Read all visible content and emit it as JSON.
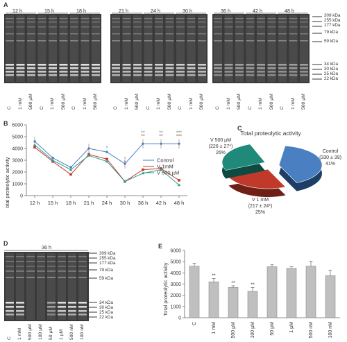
{
  "panelA": {
    "letter": "A",
    "timepoints": [
      "12 h",
      "15 h",
      "18 h",
      "21 h",
      "24 h",
      "30 h",
      "36 h",
      "42 h",
      "48 h"
    ],
    "lane_labels": [
      "C",
      "1 mM",
      "500 µM"
    ],
    "markers": [
      "309 kDa",
      "255 kDa",
      "177 kDa",
      "79 kDa",
      "59 kDa",
      "34 kDa",
      "30 kDa",
      "25 kDa",
      "22 kDa"
    ]
  },
  "panelB": {
    "letter": "B",
    "ylabel": "Total proteolytic activity",
    "legend": [
      "Control",
      "V 1mM",
      "V 500 µM"
    ],
    "colors": {
      "control": "#4a7fc1",
      "v1mm": "#c0392b",
      "v500": "#2a9d8f"
    },
    "annotations": {
      "s24": "*",
      "s30": "*",
      "ss": "**",
      "sss": "***"
    },
    "chart_data": {
      "type": "line",
      "categories": [
        "12 h",
        "15 h",
        "18 h",
        "21 h",
        "24 h",
        "30 h",
        "36 h",
        "42 h",
        "48 h"
      ],
      "ylim": [
        0,
        6000
      ],
      "yticks": [
        "0",
        "1000",
        "2000",
        "3000",
        "4000",
        "5000",
        "6000"
      ],
      "series": [
        {
          "name": "Control",
          "values": [
            4600,
            3200,
            2400,
            4000,
            3700,
            2700,
            4400,
            4400,
            4400
          ]
        },
        {
          "name": "V 1mM",
          "values": [
            4100,
            2900,
            1800,
            3500,
            3100,
            1200,
            2200,
            2300,
            1300
          ]
        },
        {
          "name": "V 500 µM",
          "values": [
            4300,
            3000,
            2200,
            3400,
            2900,
            1200,
            1900,
            2200,
            900
          ]
        }
      ]
    }
  },
  "panelC": {
    "letter": "C",
    "title": "Total proteolytic activity",
    "labels": {
      "control": [
        "Control",
        "(330 ± 39)",
        "41%"
      ],
      "v1mm": [
        "V 1 mM",
        "(217 ± 24*)",
        "25%"
      ],
      "v500": [
        "V 500 µM",
        "(226 ± 27*)",
        "26%"
      ]
    },
    "colors": {
      "control": "#4a7fc1",
      "v1mm": "#c0392b",
      "v500": "#1f8a7a"
    },
    "chart_data": {
      "type": "pie",
      "labels": [
        "Control",
        "V 1 mM",
        "V 500 µM"
      ],
      "values": [
        41,
        25,
        26
      ]
    }
  },
  "panelD": {
    "letter": "D",
    "timepoint": "36 h",
    "lane_labels": [
      "C",
      "1 mM",
      "500 µM",
      "100 µM",
      "50 µM",
      "1 µM",
      "500 nM",
      "100 nM"
    ],
    "markers": [
      "309 kDa",
      "255 kDa",
      "177 kDa",
      "79 kDa",
      "59 kDa",
      "34 kDa",
      "30 kDa",
      "25 kDa",
      "22 kDa"
    ]
  },
  "panelE": {
    "letter": "E",
    "ylabel": "Total proteolytic activity",
    "annotation": "**",
    "chart_data": {
      "type": "bar",
      "categories": [
        "C",
        "1 mM",
        "500 µM",
        "100 µM",
        "50 µM",
        "1 µM",
        "500 nM",
        "100 nM"
      ],
      "values": [
        4600,
        3200,
        2700,
        2350,
        4550,
        4400,
        4600,
        3750
      ],
      "errors": [
        250,
        300,
        150,
        350,
        200,
        150,
        450,
        500
      ],
      "ylim": [
        0,
        6000
      ],
      "yticks": [
        "0",
        "1000",
        "2000",
        "3000",
        "4000",
        "5000",
        "6000"
      ]
    }
  }
}
